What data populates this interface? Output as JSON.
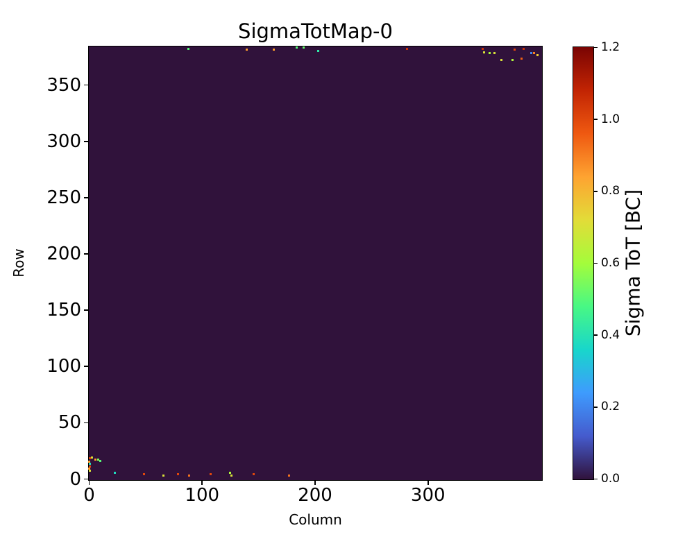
{
  "figure": {
    "background": "#ffffff"
  },
  "chart_data": {
    "type": "heatmap",
    "title": "SigmaTotMap-0",
    "xlabel": "Column",
    "ylabel": "Row",
    "xlim": [
      0,
      400
    ],
    "ylim": [
      0,
      384
    ],
    "x_ticks": [
      0,
      100,
      200,
      300
    ],
    "y_ticks": [
      0,
      50,
      100,
      150,
      200,
      250,
      300,
      350
    ],
    "grid": false,
    "background_value": 0.0,
    "background_color": "#30123b",
    "colorbar": {
      "label": "Sigma ToT [BC]",
      "min": 0.0,
      "max": 1.2,
      "ticks": [
        0.0,
        0.2,
        0.4,
        0.6,
        0.8,
        1.0,
        1.2
      ],
      "colormap": "turbo",
      "colormap_stops": [
        [
          0.0,
          "#30123b"
        ],
        [
          0.1,
          "#455bcd"
        ],
        [
          0.2,
          "#3e9bfe"
        ],
        [
          0.3,
          "#18d6cb"
        ],
        [
          0.4,
          "#48f884"
        ],
        [
          0.5,
          "#a4fc3b"
        ],
        [
          0.6,
          "#e2dc38"
        ],
        [
          0.7,
          "#fea331"
        ],
        [
          0.8,
          "#ef5911"
        ],
        [
          0.9,
          "#c22403"
        ],
        [
          1.0,
          "#7a0403"
        ]
      ]
    },
    "points": [
      {
        "col": 88,
        "row": 382,
        "value": 0.5
      },
      {
        "col": 140,
        "row": 381,
        "value": 0.85
      },
      {
        "col": 164,
        "row": 381,
        "value": 0.85
      },
      {
        "col": 184,
        "row": 383,
        "value": 0.5
      },
      {
        "col": 190,
        "row": 383,
        "value": 0.52
      },
      {
        "col": 203,
        "row": 380,
        "value": 0.42
      },
      {
        "col": 282,
        "row": 382,
        "value": 1.05
      },
      {
        "col": 349,
        "row": 382,
        "value": 1.05
      },
      {
        "col": 350,
        "row": 379,
        "value": 0.7
      },
      {
        "col": 355,
        "row": 378,
        "value": 0.6
      },
      {
        "col": 359,
        "row": 378,
        "value": 0.7
      },
      {
        "col": 365,
        "row": 372,
        "value": 0.7
      },
      {
        "col": 375,
        "row": 372,
        "value": 0.62
      },
      {
        "col": 377,
        "row": 381,
        "value": 1.0
      },
      {
        "col": 383,
        "row": 373,
        "value": 0.95
      },
      {
        "col": 385,
        "row": 382,
        "value": 1.05
      },
      {
        "col": 392,
        "row": 378,
        "value": 0.2
      },
      {
        "col": 394,
        "row": 378,
        "value": 0.9
      },
      {
        "col": 397,
        "row": 376,
        "value": 0.75
      },
      {
        "col": 1,
        "row": 18,
        "value": 1.0
      },
      {
        "col": 3,
        "row": 19,
        "value": 0.7
      },
      {
        "col": 6,
        "row": 17,
        "value": 0.85
      },
      {
        "col": 8,
        "row": 17,
        "value": 0.55
      },
      {
        "col": 10,
        "row": 16,
        "value": 0.5
      },
      {
        "col": 0,
        "row": 15,
        "value": 0.85
      },
      {
        "col": 1,
        "row": 13,
        "value": 0.38
      },
      {
        "col": 1,
        "row": 11,
        "value": 1.0
      },
      {
        "col": 0,
        "row": 9,
        "value": 0.85
      },
      {
        "col": 1,
        "row": 7,
        "value": 0.7
      },
      {
        "col": 23,
        "row": 5,
        "value": 0.38
      },
      {
        "col": 49,
        "row": 4,
        "value": 1.0
      },
      {
        "col": 66,
        "row": 3,
        "value": 0.7
      },
      {
        "col": 79,
        "row": 4,
        "value": 1.0
      },
      {
        "col": 89,
        "row": 3,
        "value": 0.92
      },
      {
        "col": 108,
        "row": 4,
        "value": 1.0
      },
      {
        "col": 125,
        "row": 5,
        "value": 0.62
      },
      {
        "col": 126,
        "row": 3,
        "value": 0.7
      },
      {
        "col": 146,
        "row": 4,
        "value": 1.0
      },
      {
        "col": 177,
        "row": 3,
        "value": 0.92
      }
    ]
  }
}
